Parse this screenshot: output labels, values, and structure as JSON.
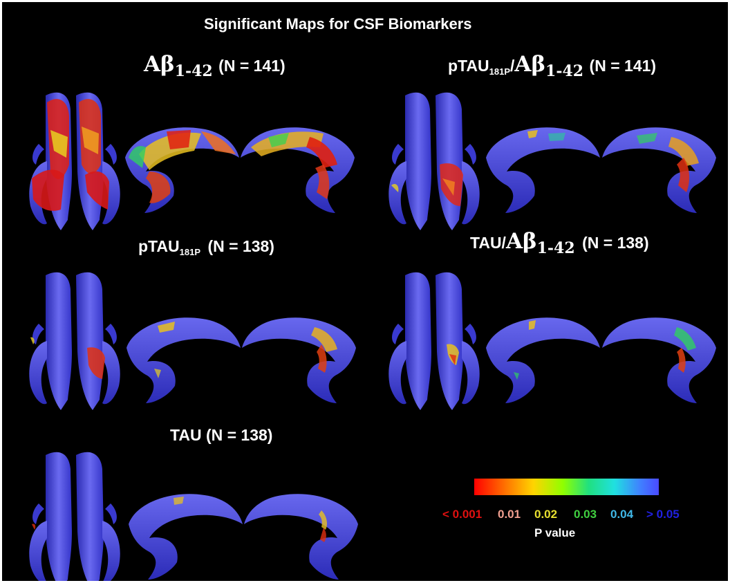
{
  "title": "Significant Maps for CSF Biomarkers",
  "panels": {
    "ab": {
      "name_main": "Aβ",
      "name_sub": "1-42",
      "n": "(N = 141)"
    },
    "ptau_ab": {
      "prefix": "pTAU",
      "prefix_sub": "181P",
      "slash": "/",
      "name_main": "Aβ",
      "name_sub": "1-42",
      "n": "(N = 141)"
    },
    "ptau": {
      "prefix": "pTAU",
      "prefix_sub": "181P",
      "n": "(N = 138)"
    },
    "tau_ab": {
      "prefix": "TAU/",
      "name_main": "Aβ",
      "name_sub": "1-42",
      "n": "(N = 138)"
    },
    "tau": {
      "label": "TAU (N = 138)"
    }
  },
  "legend": {
    "ticks": [
      {
        "text": "< 0.001",
        "color": "#e01010"
      },
      {
        "text": "0.01",
        "color": "#f2a090"
      },
      {
        "text": "0.02",
        "color": "#e8e030"
      },
      {
        "text": "0.03",
        "color": "#40d040"
      },
      {
        "text": "0.04",
        "color": "#40b8e8"
      },
      {
        "text": "> 0.05",
        "color": "#2020e0"
      }
    ],
    "axis_label": "P value"
  },
  "colors": {
    "background": "#000000",
    "base_surface": "#4646e0",
    "scale": [
      "#ff0000",
      "#ff6a00",
      "#ffd000",
      "#c8ff00",
      "#30e060",
      "#20e0e0",
      "#4060ff",
      "#3a3aff"
    ]
  }
}
